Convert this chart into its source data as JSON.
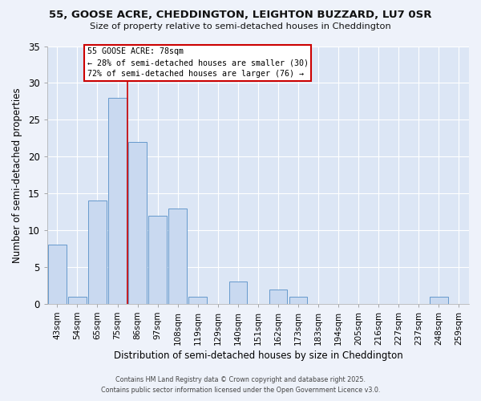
{
  "title_line1": "55, GOOSE ACRE, CHEDDINGTON, LEIGHTON BUZZARD, LU7 0SR",
  "title_line2": "Size of property relative to semi-detached houses in Cheddington",
  "xlabel": "Distribution of semi-detached houses by size in Cheddington",
  "ylabel": "Number of semi-detached properties",
  "bin_labels": [
    "43sqm",
    "54sqm",
    "65sqm",
    "75sqm",
    "86sqm",
    "97sqm",
    "108sqm",
    "119sqm",
    "129sqm",
    "140sqm",
    "151sqm",
    "162sqm",
    "173sqm",
    "183sqm",
    "194sqm",
    "205sqm",
    "216sqm",
    "227sqm",
    "237sqm",
    "248sqm",
    "259sqm"
  ],
  "bar_heights": [
    8,
    1,
    14,
    28,
    22,
    12,
    13,
    1,
    0,
    3,
    0,
    2,
    1,
    0,
    0,
    0,
    0,
    0,
    0,
    1,
    0
  ],
  "bar_color": "#c9d9f0",
  "bar_edge_color": "#6699cc",
  "property_line_x": 3.5,
  "property_sqm": 78,
  "property_label": "55 GOOSE ACRE: 78sqm",
  "pct_smaller": 28,
  "pct_larger": 72,
  "count_smaller": 30,
  "count_larger": 76,
  "line_color": "#cc0000",
  "ylim": [
    0,
    35
  ],
  "yticks": [
    0,
    5,
    10,
    15,
    20,
    25,
    30,
    35
  ],
  "footer_line1": "Contains HM Land Registry data © Crown copyright and database right 2025.",
  "footer_line2": "Contains public sector information licensed under the Open Government Licence v3.0.",
  "background_color": "#eef2fa",
  "plot_bg_color": "#dce6f5",
  "grid_color": "#ffffff"
}
